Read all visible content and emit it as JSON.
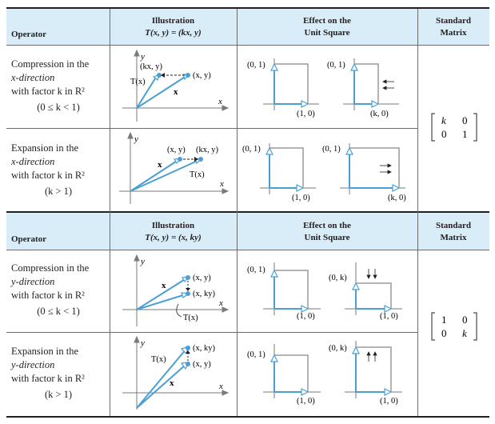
{
  "table": {
    "header1": {
      "operator": "Operator",
      "illustration_title": "Illustration",
      "illustration_formula": "T(x, y) = (kx, y)",
      "effect_line1": "Effect on the",
      "effect_line2": "Unit Square",
      "standard_line1": "Standard",
      "standard_line2": "Matrix"
    },
    "header2": {
      "operator": "Operator",
      "illustration_title": "Illustration",
      "illustration_formula": "T(x, y) = (x, ky)",
      "effect_line1": "Effect on the",
      "effect_line2": "Unit Square",
      "standard_line1": "Standard",
      "standard_line2": "Matrix"
    },
    "rows": [
      {
        "op_line1": "Compression in the",
        "op_line2": "x-direction",
        "op_line3": "with factor k in R²",
        "op_cond": "(0 ≤ k < 1)",
        "ill_labels": {
          "y": "y",
          "x": "x",
          "kxy": "(kx, y)",
          "xy": "(x, y)",
          "Tx": "T(x)",
          "xbold": "x"
        },
        "sq_labels": {
          "p01": "(0, 1)",
          "p10": "(1, 0)",
          "p01b": "(0, 1)",
          "pk0": "(k, 0)"
        }
      },
      {
        "op_line1": "Expansion in the",
        "op_line2": "x-direction",
        "op_line3": "with factor k in R²",
        "op_cond": "(k > 1)",
        "ill_labels": {
          "y": "y",
          "x": "x",
          "xy": "(x, y)",
          "kxy": "(kx, y)",
          "Tx": "T(x)",
          "xbold": "x"
        },
        "sq_labels": {
          "p01": "(0, 1)",
          "p10": "(1, 0)",
          "p01b": "(0, 1)",
          "pk0": "(k, 0)"
        }
      },
      {
        "op_line1": "Compression in the",
        "op_line2": "y-direction",
        "op_line3": "with factor k in R²",
        "op_cond": "(0 ≤ k < 1)",
        "ill_labels": {
          "y": "y",
          "x": "x",
          "xy": "(x, y)",
          "xky": "(x, ky)",
          "Tx": "T(x)",
          "xbold": "x"
        },
        "sq_labels": {
          "p01": "(0, 1)",
          "p10": "(1, 0)",
          "p0k": "(0, k)",
          "p10b": "(1, 0)"
        }
      },
      {
        "op_line1": "Expansion in the",
        "op_line2": "y-direction",
        "op_line3": "with factor k in R²",
        "op_cond": "(k > 1)",
        "ill_labels": {
          "y": "y",
          "x": "x",
          "xky": "(x, ky)",
          "xy": "(x, y)",
          "Tx": "T(x)",
          "xbold": "x"
        },
        "sq_labels": {
          "p01": "(0, 1)",
          "p10": "(1, 0)",
          "p0k": "(0, k)",
          "p10b": "(1, 0)"
        }
      }
    ],
    "matrix1": {
      "a": "k",
      "b": "0",
      "c": "0",
      "d": "1"
    },
    "matrix2": {
      "a": "1",
      "b": "0",
      "c": "0",
      "d": "k"
    },
    "colors": {
      "header_bg": "#d9edf8",
      "vector_blue": "#4a9fd5",
      "axis_gray": "#7a7a7a",
      "square_gray": "#9a9a9a"
    }
  }
}
